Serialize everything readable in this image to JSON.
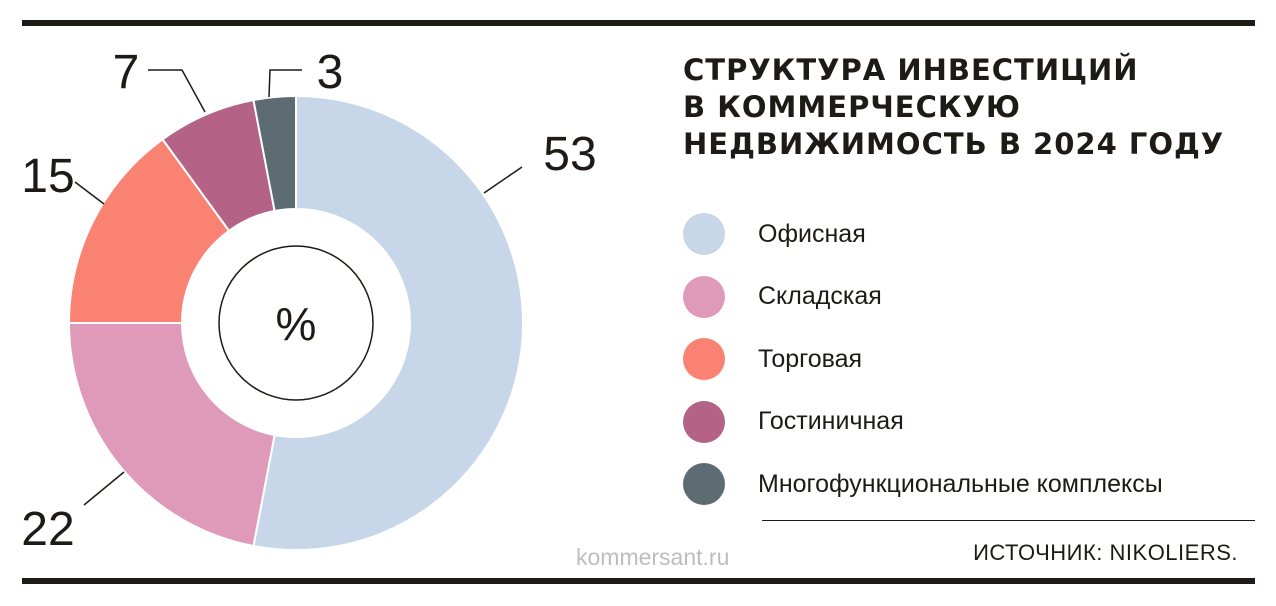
{
  "title_lines": [
    "СТРУКТУРА ИНВЕСТИЦИЙ",
    "В КОММЕРЧЕСКУЮ",
    "НЕДВИЖИМОСТЬ В 2024 ГОДУ"
  ],
  "unit_label": "%",
  "source": "ИСТОЧНИК: NIKOLIERS.",
  "watermark": "kommersant.ru",
  "chart_data": {
    "type": "pie",
    "variant": "donut",
    "title": "СТРУКТУРА ИНВЕСТИЦИЙ В КОММЕРЧЕСКУЮ НЕДВИЖИМОСТЬ В 2024 ГОДУ",
    "unit": "%",
    "legend_position": "right",
    "slices": [
      {
        "name": "Офисная",
        "value": 53,
        "color": "#c7d6e8"
      },
      {
        "name": "Складская",
        "value": 22,
        "color": "#df9ab9"
      },
      {
        "name": "Торговая",
        "value": 15,
        "color": "#f98272"
      },
      {
        "name": "Гостиничная",
        "value": 7,
        "color": "#b46286"
      },
      {
        "name": "Многофункциональные комплексы",
        "value": 3,
        "color": "#5d6b73"
      }
    ]
  }
}
